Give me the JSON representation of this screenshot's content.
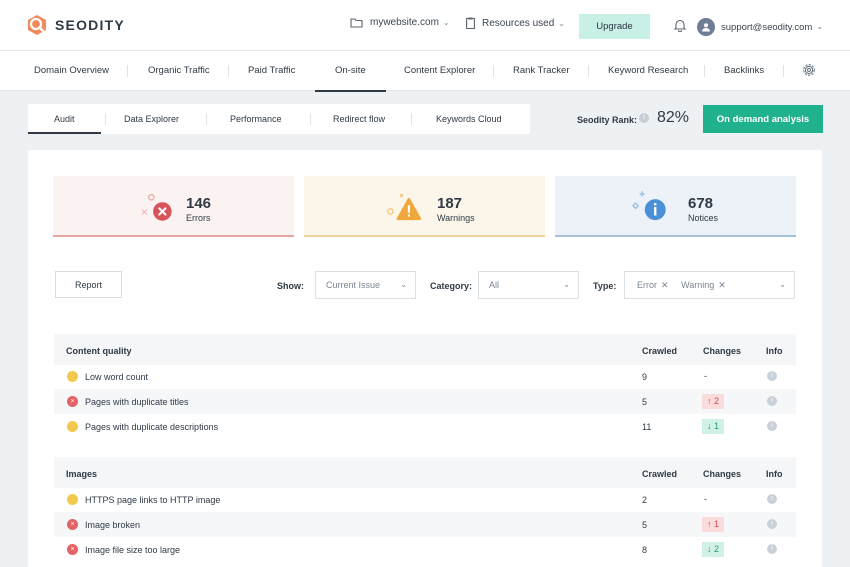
{
  "app": {
    "name": "SEODITY"
  },
  "topbar": {
    "site": "mywebsite.com",
    "resources": "Resources used",
    "upgrade": "Upgrade",
    "email": "support@seodity.com"
  },
  "nav": {
    "items": [
      "Domain Overview",
      "Organic Traffic",
      "Paid Traffic",
      "On-site",
      "Content Explorer",
      "Rank Tracker",
      "Keyword Research",
      "Backlinks"
    ],
    "active": "On-site"
  },
  "subtabs": {
    "items": [
      "Audit",
      "Data Explorer",
      "Performance",
      "Redirect flow",
      "Keywords Cloud"
    ],
    "active": "Audit"
  },
  "rank": {
    "label": "Seodity Rank:",
    "value": "82%"
  },
  "demand_button": "On demand analysis",
  "stats": {
    "errors": {
      "count": "146",
      "label": "Errors"
    },
    "warnings": {
      "count": "187",
      "label": "Warnings"
    },
    "notices": {
      "count": "678",
      "label": "Notices"
    }
  },
  "filters": {
    "report": "Report",
    "show_label": "Show:",
    "show_value": "Current Issue",
    "category_label": "Category:",
    "category_value": "All",
    "type_label": "Type:",
    "type_tags": [
      "Error",
      "Warning"
    ]
  },
  "columns": {
    "crawled": "Crawled",
    "changes": "Changes",
    "info": "Info"
  },
  "sections": [
    {
      "title": "Content quality",
      "rows": [
        {
          "severity": "warning",
          "name": "Low word count",
          "crawled": "9",
          "change": "-",
          "dir": "none"
        },
        {
          "severity": "error",
          "name": "Pages with duplicate titles",
          "crawled": "5",
          "change": "2",
          "dir": "up"
        },
        {
          "severity": "warning",
          "name": "Pages with duplicate descriptions",
          "crawled": "11",
          "change": "1",
          "dir": "down"
        }
      ]
    },
    {
      "title": "Images",
      "rows": [
        {
          "severity": "warning",
          "name": "HTTPS page links to HTTP image",
          "crawled": "2",
          "change": "-",
          "dir": "none"
        },
        {
          "severity": "error",
          "name": "Image broken",
          "crawled": "5",
          "change": "1",
          "dir": "up"
        },
        {
          "severity": "error",
          "name": "Image file size too large",
          "crawled": "8",
          "change": "2",
          "dir": "down"
        }
      ]
    }
  ],
  "colors": {
    "accent": "#1fb28c",
    "error": "#e36466",
    "warning": "#f2c94c",
    "notice": "#4a90d6"
  }
}
